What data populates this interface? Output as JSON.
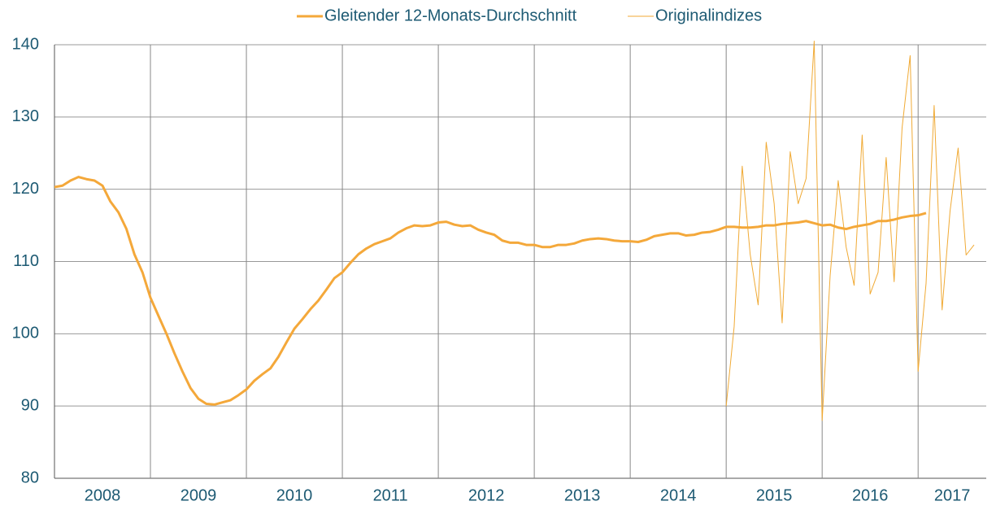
{
  "chart_data": {
    "type": "line",
    "x": [
      2008,
      2008.083,
      2008.167,
      2008.25,
      2008.333,
      2008.417,
      2008.5,
      2008.583,
      2008.667,
      2008.75,
      2008.833,
      2008.917,
      2009,
      2009.083,
      2009.167,
      2009.25,
      2009.333,
      2009.417,
      2009.5,
      2009.583,
      2009.667,
      2009.75,
      2009.833,
      2009.917,
      2010,
      2010.083,
      2010.167,
      2010.25,
      2010.333,
      2010.417,
      2010.5,
      2010.583,
      2010.667,
      2010.75,
      2010.833,
      2010.917,
      2011,
      2011.083,
      2011.167,
      2011.25,
      2011.333,
      2011.417,
      2011.5,
      2011.583,
      2011.667,
      2011.75,
      2011.833,
      2011.917,
      2012,
      2012.083,
      2012.167,
      2012.25,
      2012.333,
      2012.417,
      2012.5,
      2012.583,
      2012.667,
      2012.75,
      2012.833,
      2012.917,
      2013,
      2013.083,
      2013.167,
      2013.25,
      2013.333,
      2013.417,
      2013.5,
      2013.583,
      2013.667,
      2013.75,
      2013.833,
      2013.917,
      2014,
      2014.083,
      2014.167,
      2014.25,
      2014.333,
      2014.417,
      2014.5,
      2014.583,
      2014.667,
      2014.75,
      2014.833,
      2014.917,
      2015,
      2015.083,
      2015.167,
      2015.25,
      2015.333,
      2015.417,
      2015.5,
      2015.583,
      2015.667,
      2015.75,
      2015.833,
      2015.917,
      2016,
      2016.083,
      2016.167,
      2016.25,
      2016.333,
      2016.417,
      2016.5,
      2016.583,
      2016.667,
      2016.75,
      2016.833,
      2016.917,
      2017,
      2017.083,
      2017.167,
      2017.25,
      2017.333,
      2017.417,
      2017.5,
      2017.583
    ],
    "series": [
      {
        "name": "Gleitender 12-Monats-Durchschnitt",
        "color": "#f4a83a",
        "width": 3,
        "values": [
          120.3,
          120.5,
          121.2,
          121.7,
          121.4,
          121.2,
          120.5,
          118.3,
          116.8,
          114.5,
          111.0,
          108.5,
          105.0,
          102.5,
          100.0,
          97.3,
          94.8,
          92.5,
          91.0,
          90.3,
          90.2,
          90.5,
          90.8,
          91.5,
          92.3,
          93.5,
          94.4,
          95.2,
          96.8,
          98.8,
          100.7,
          102.0,
          103.4,
          104.6,
          106.1,
          107.7,
          108.5,
          109.8,
          111.0,
          111.8,
          112.4,
          112.8,
          113.2,
          114.0,
          114.6,
          115.0,
          114.9,
          115.0,
          115.4,
          115.5,
          115.1,
          114.9,
          115.0,
          114.4,
          114.0,
          113.7,
          112.9,
          112.6,
          112.6,
          112.3,
          112.3,
          112.0,
          112.0,
          112.3,
          112.3,
          112.5,
          112.9,
          113.1,
          113.2,
          113.1,
          112.9,
          112.8,
          112.8,
          112.7,
          113.0,
          113.5,
          113.7,
          113.9,
          113.9,
          113.6,
          113.7,
          114.0,
          114.1,
          114.4,
          114.8,
          114.8,
          114.7,
          114.7,
          114.8,
          115.0,
          115.0,
          115.2,
          115.3,
          115.4,
          115.6,
          115.3,
          115.0,
          115.1,
          114.7,
          114.5,
          114.8,
          115.0,
          115.2,
          115.6,
          115.6,
          115.8,
          116.1,
          116.3,
          116.4,
          116.7,
          null,
          null,
          null,
          null,
          null,
          null
        ]
      },
      {
        "name": "Originalindizes",
        "color": "#f0aa35",
        "width": 1,
        "values": [
          null,
          null,
          null,
          null,
          null,
          null,
          null,
          null,
          null,
          null,
          null,
          null,
          null,
          null,
          null,
          null,
          null,
          null,
          null,
          null,
          null,
          null,
          null,
          null,
          null,
          null,
          null,
          null,
          null,
          null,
          null,
          null,
          null,
          null,
          null,
          null,
          null,
          null,
          null,
          null,
          null,
          null,
          null,
          null,
          null,
          null,
          null,
          null,
          null,
          null,
          null,
          null,
          null,
          null,
          null,
          null,
          null,
          null,
          null,
          null,
          null,
          null,
          null,
          null,
          null,
          null,
          null,
          null,
          null,
          null,
          null,
          null,
          null,
          null,
          null,
          null,
          null,
          null,
          null,
          null,
          null,
          null,
          null,
          null,
          90.0,
          101.0,
          123.2,
          111.0,
          104.0,
          126.5,
          118.0,
          101.5,
          125.2,
          118.0,
          121.5,
          140.5,
          88.0,
          108.0,
          121.2,
          112.0,
          106.7,
          127.5,
          105.5,
          108.5,
          124.4,
          107.2,
          128.5,
          138.5,
          94.8,
          107.0,
          131.6,
          103.3,
          117.0,
          125.7,
          110.9,
          112.3
        ]
      }
    ],
    "xlim": [
      2008,
      2017.71
    ],
    "xticks": [
      {
        "value": 2008,
        "label": "2008"
      },
      {
        "value": 2009,
        "label": "2009"
      },
      {
        "value": 2010,
        "label": "2010"
      },
      {
        "value": 2011,
        "label": "2011"
      },
      {
        "value": 2012,
        "label": "2012"
      },
      {
        "value": 2013,
        "label": "2013"
      },
      {
        "value": 2014,
        "label": "2014"
      },
      {
        "value": 2015,
        "label": "2015"
      },
      {
        "value": 2016,
        "label": "2016"
      },
      {
        "value": 2017,
        "label": "2017"
      }
    ],
    "ylim": [
      80,
      140
    ],
    "yticks": [
      80,
      90,
      100,
      110,
      120,
      130,
      140
    ],
    "grid": true,
    "legend": "top"
  }
}
